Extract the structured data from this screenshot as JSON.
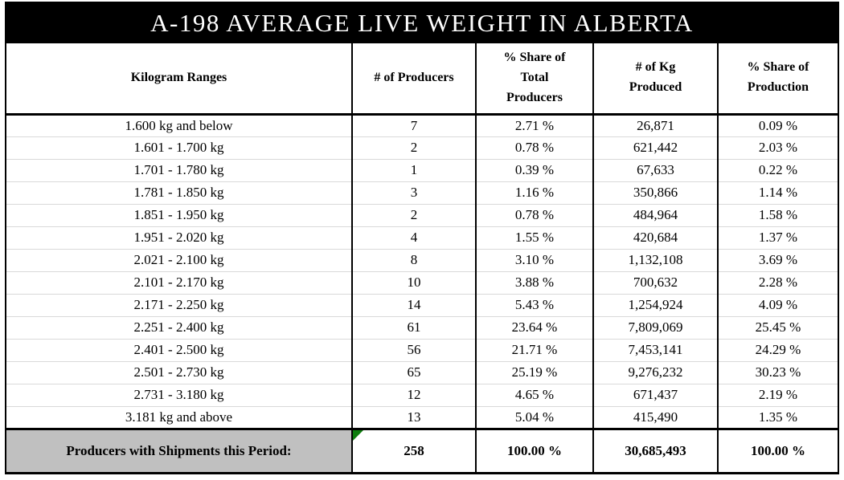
{
  "title": "A-198 AVERAGE LIVE WEIGHT IN ALBERTA",
  "table": {
    "columns": [
      "Kilogram Ranges",
      "# of Producers",
      "% Share of\nTotal\nProducers",
      "# of Kg\nProduced",
      "% Share of\nProduction"
    ],
    "rows": [
      [
        "1.600 kg and below",
        "7",
        "2.71 %",
        "26,871",
        "0.09 %"
      ],
      [
        "1.601 - 1.700 kg",
        "2",
        "0.78 %",
        "621,442",
        "2.03 %"
      ],
      [
        "1.701 - 1.780 kg",
        "1",
        "0.39 %",
        "67,633",
        "0.22 %"
      ],
      [
        "1.781 - 1.850 kg",
        "3",
        "1.16 %",
        "350,866",
        "1.14 %"
      ],
      [
        "1.851 - 1.950 kg",
        "2",
        "0.78 %",
        "484,964",
        "1.58 %"
      ],
      [
        "1.951 - 2.020 kg",
        "4",
        "1.55 %",
        "420,684",
        "1.37 %"
      ],
      [
        "2.021 - 2.100 kg",
        "8",
        "3.10 %",
        "1,132,108",
        "3.69 %"
      ],
      [
        "2.101 - 2.170 kg",
        "10",
        "3.88 %",
        "700,632",
        "2.28 %"
      ],
      [
        "2.171 - 2.250 kg",
        "14",
        "5.43 %",
        "1,254,924",
        "4.09 %"
      ],
      [
        "2.251 - 2.400 kg",
        "61",
        "23.64 %",
        "7,809,069",
        "25.45 %"
      ],
      [
        "2.401 - 2.500 kg",
        "56",
        "21.71 %",
        "7,453,141",
        "24.29 %"
      ],
      [
        "2.501 - 2.730 kg",
        "65",
        "25.19 %",
        "9,276,232",
        "30.23 %"
      ],
      [
        "2.731 - 3.180 kg",
        "12",
        "4.65 %",
        "671,437",
        "2.19 %"
      ],
      [
        "3.181 kg and above",
        "13",
        "5.04 %",
        "415,490",
        "1.35 %"
      ]
    ],
    "footer": {
      "label": "Producers with Shipments this Period:",
      "values": [
        "258",
        "100.00 %",
        "30,685,493",
        "100.00 %"
      ]
    }
  },
  "icons": {
    "cell_flag": "green-corner-triangle"
  },
  "colors": {
    "title_bg": "#000000",
    "title_text": "#ffffff",
    "border": "#000000",
    "row_divider": "#d9d9d9",
    "footer_label_bg": "#c0c0c0",
    "flag_green": "#0e7d0e"
  }
}
